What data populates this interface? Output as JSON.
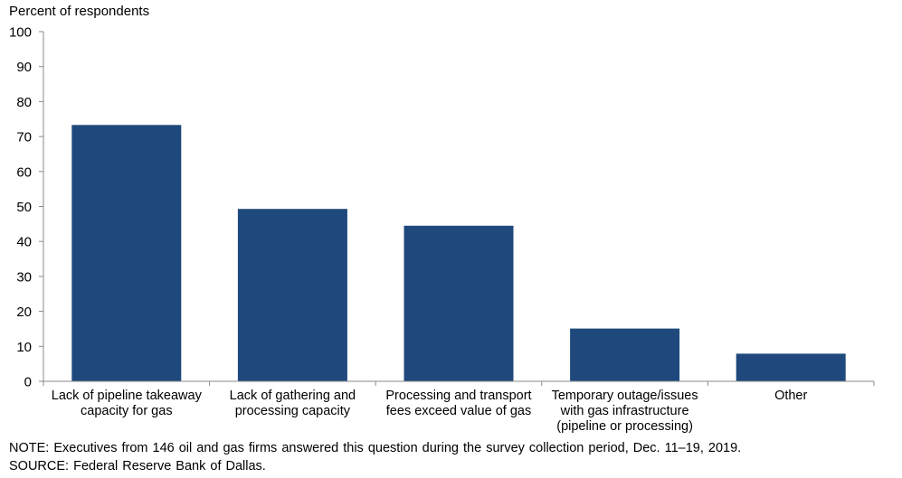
{
  "chart_data": {
    "type": "bar",
    "title": "",
    "ylabel": "Percent of respondents",
    "xlabel": "",
    "ylim": [
      0,
      100
    ],
    "yticks": [
      0,
      10,
      20,
      30,
      40,
      50,
      60,
      70,
      80,
      90,
      100
    ],
    "categories": [
      [
        "Lack of pipeline takeaway",
        "capacity for gas"
      ],
      [
        "Lack of gathering and",
        "processing capacity"
      ],
      [
        "Processing and transport",
        "fees exceed value of gas"
      ],
      [
        "Temporary outage/issues",
        "with gas infrastructure",
        "(pipeline or processing)"
      ],
      [
        "Other"
      ]
    ],
    "values": [
      73.3,
      49.3,
      44.5,
      15.1,
      7.9
    ],
    "bar_color": "#1f497d",
    "grid": false
  },
  "footer": {
    "note": "NOTE:  Executives  from  146  oil  and  gas  firms  answered  this  question  during  the  survey  collection  period,  Dec.  11–19,  2019.",
    "source": "SOURCE:  Federal  Reserve  Bank  of  Dallas."
  }
}
